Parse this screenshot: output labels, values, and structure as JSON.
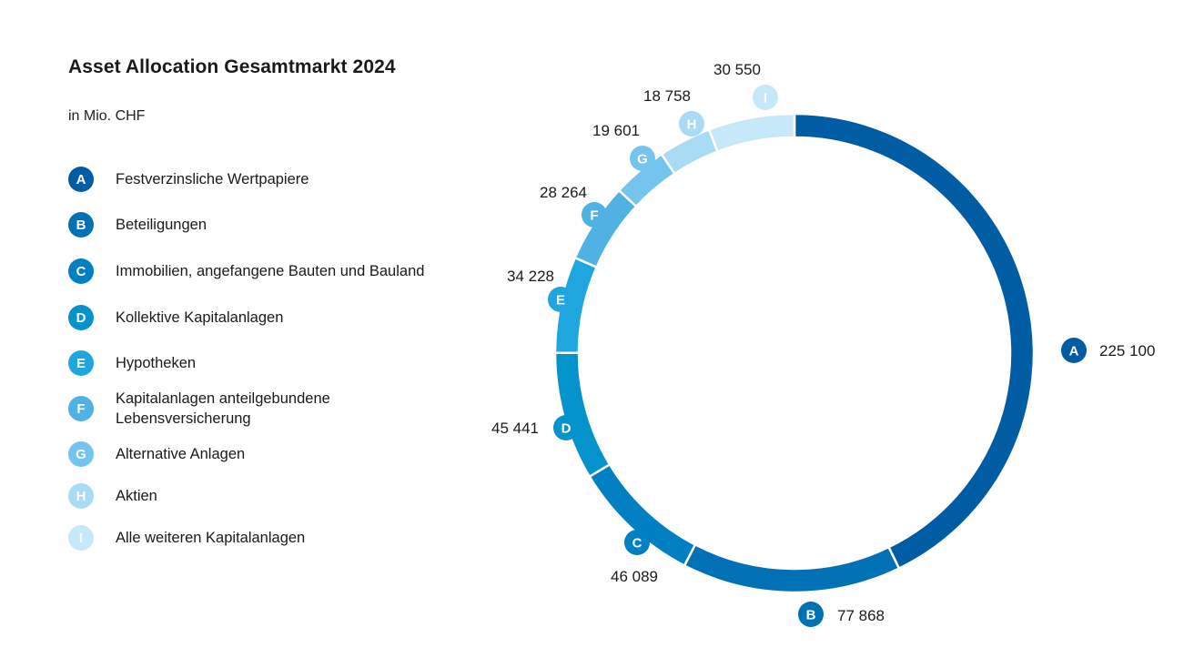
{
  "chart_data": {
    "type": "pie",
    "title": "Asset Allocation Gesamtmarkt 2024",
    "subtitle": "in Mio. CHF",
    "slices": [
      {
        "letter": "A",
        "label": "Festverzinsliche Wertpapiere",
        "value": 225100,
        "value_label": "225 100",
        "color": "#005ca3"
      },
      {
        "letter": "B",
        "label": "Beteiligungen",
        "value": 77868,
        "value_label": "77 868",
        "color": "#0071b5"
      },
      {
        "letter": "C",
        "label": "Immobilien, angefangene Bauten und Bauland",
        "value": 46089,
        "value_label": "46 089",
        "color": "#0080c3"
      },
      {
        "letter": "D",
        "label": "Kollektive Kapitalanlagen",
        "value": 45441,
        "value_label": "45 441",
        "color": "#0593cb"
      },
      {
        "letter": "E",
        "label": "Hypotheken",
        "value": 34228,
        "value_label": "34 228",
        "color": "#20a6de"
      },
      {
        "letter": "F",
        "label": "Kapitalanlagen anteilgebundene\nLebensversicherung",
        "value": 28264,
        "value_label": "28 264",
        "color": "#4fb2e2"
      },
      {
        "letter": "G",
        "label": "Alternative Anlagen",
        "value": 19601,
        "value_label": "19 601",
        "color": "#74c4ee"
      },
      {
        "letter": "H",
        "label": "Aktien",
        "value": 18758,
        "value_label": "18 758",
        "color": "#a9dbf5"
      },
      {
        "letter": "I",
        "label": "Alle weiteren Kapitalanlagen",
        "value": 30550,
        "value_label": "30 550",
        "color": "#c6e8f8"
      }
    ]
  }
}
